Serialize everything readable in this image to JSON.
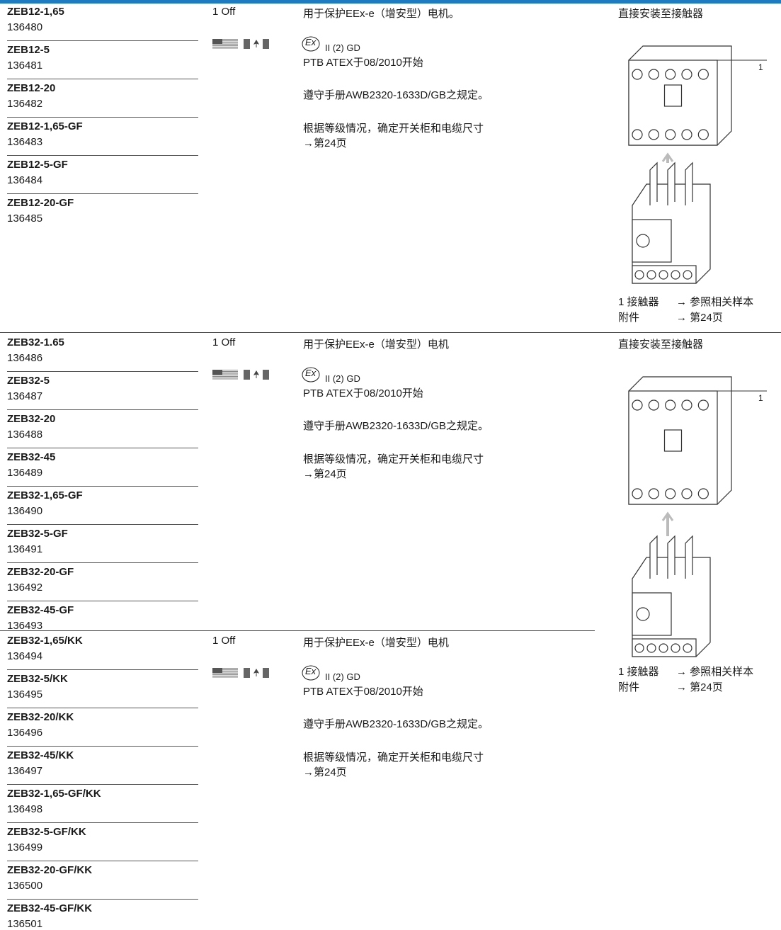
{
  "sections": [
    {
      "products": [
        {
          "type": "ZEB12-1,65",
          "article": "136480"
        },
        {
          "type": "ZEB12-5",
          "article": "136481"
        },
        {
          "type": "ZEB12-20",
          "article": "136482"
        },
        {
          "type": "ZEB12-1,65-GF",
          "article": "136483"
        },
        {
          "type": "ZEB12-5-GF",
          "article": "136484"
        },
        {
          "type": "ZEB12-20-GF",
          "article": "136485"
        }
      ],
      "quantity": "1 Off",
      "description": "用于保护EEx-e（增安型）电机。",
      "ex_symbol": "Εx",
      "ex_marking": "II (2) GD",
      "approval": "PTB ATEX于08/2010开始",
      "manual": "遵守手册AWB2320-1633D/GB之规定。",
      "sizing": "根据等级情况，确定开关柜和电缆尺寸",
      "page_ref": "→第24页",
      "mounting": "直接安装至接触器",
      "callout": "1",
      "legend": [
        {
          "label": "1 接触器",
          "ref": "→ 参照相关样本"
        },
        {
          "label": "附件",
          "ref": "→ 第24页"
        }
      ]
    },
    {
      "products": [
        {
          "type": "ZEB32-1.65",
          "article": "136486"
        },
        {
          "type": "ZEB32-5",
          "article": "136487"
        },
        {
          "type": "ZEB32-20",
          "article": "136488"
        },
        {
          "type": "ZEB32-45",
          "article": "136489"
        },
        {
          "type": "ZEB32-1,65-GF",
          "article": "136490"
        },
        {
          "type": "ZEB32-5-GF",
          "article": "136491"
        },
        {
          "type": "ZEB32-20-GF",
          "article": "136492"
        },
        {
          "type": "ZEB32-45-GF",
          "article": "136493"
        }
      ],
      "quantity": "1 Off",
      "description": "用于保护EEx-e（增安型）电机",
      "ex_symbol": "Εx",
      "ex_marking": "II (2) GD",
      "approval": "PTB ATEX于08/2010开始",
      "manual": "遵守手册AWB2320-1633D/GB之规定。",
      "sizing": "根据等级情况，确定开关柜和电缆尺寸",
      "page_ref": "→第24页",
      "mounting": "直接安装至接触器",
      "callout": "1",
      "legend": [
        {
          "label": "1 接触器",
          "ref": "→ 参照相关样本"
        },
        {
          "label": "附件",
          "ref": "→ 第24页"
        }
      ]
    },
    {
      "products": [
        {
          "type": "ZEB32-1,65/KK",
          "article": "136494"
        },
        {
          "type": "ZEB32-5/KK",
          "article": "136495"
        },
        {
          "type": "ZEB32-20/KK",
          "article": "136496"
        },
        {
          "type": "ZEB32-45/KK",
          "article": "136497"
        },
        {
          "type": "ZEB32-1,65-GF/KK",
          "article": "136498"
        },
        {
          "type": "ZEB32-5-GF/KK",
          "article": "136499"
        },
        {
          "type": "ZEB32-20-GF/KK",
          "article": "136500"
        },
        {
          "type": "ZEB32-45-GF/KK",
          "article": "136501"
        }
      ],
      "quantity": "1 Off",
      "description": "用于保护EEx-e（增安型）电机",
      "ex_symbol": "Εx",
      "ex_marking": "II (2) GD",
      "approval": "PTB ATEX于08/2010开始",
      "manual": "遵守手册AWB2320-1633D/GB之规定。",
      "sizing": "根据等级情况，确定开关柜和电缆尺寸",
      "page_ref": "→第24页"
    }
  ]
}
